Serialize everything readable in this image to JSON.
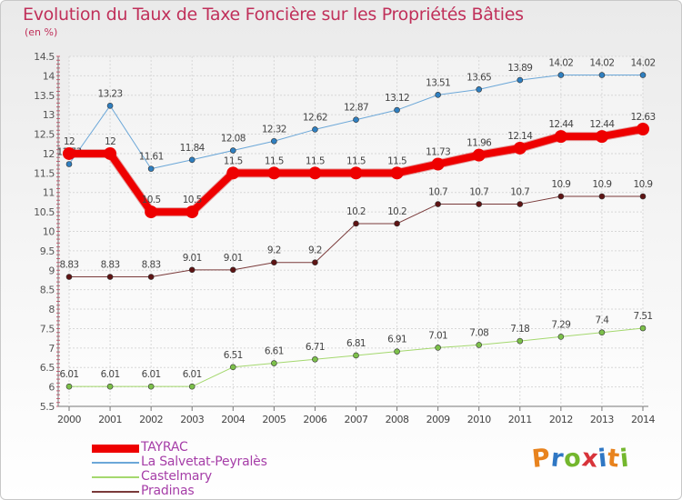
{
  "title": "Evolution du Taux de Taxe Foncière sur les Propriétés Bâties",
  "subtitle": "(en %)",
  "brand": {
    "letters": [
      "P",
      "r",
      "o",
      "x",
      "i",
      "t",
      "i"
    ],
    "colors": [
      "#e8831e",
      "#2f77c4",
      "#74b72e",
      "#d8343a",
      "#2f77c4",
      "#e8831e",
      "#74b72e"
    ]
  },
  "chart_data": {
    "type": "line",
    "title": "Evolution du Taux de Taxe Foncière sur les Propriétés Bâties",
    "ylabel": "(en %)",
    "xlabel": "",
    "ylim": [
      5.5,
      14.5
    ],
    "ytick_step": 0.5,
    "yticks": [
      "5.5",
      "6",
      "6.5",
      "7",
      "7.5",
      "8",
      "8.5",
      "9",
      "9.5",
      "10",
      "10.5",
      "11",
      "11.5",
      "12",
      "12.5",
      "13",
      "13.5",
      "14",
      "14.5"
    ],
    "categories": [
      "2000",
      "2001",
      "2002",
      "2003",
      "2004",
      "2005",
      "2006",
      "2007",
      "2008",
      "2009",
      "2010",
      "2011",
      "2012",
      "2013",
      "2014"
    ],
    "grid": true,
    "legend_position": "bottom-left",
    "series": [
      {
        "name": "La Salvetat-Peyralès",
        "color": "#6ba7d8",
        "marker": "#2f7fc0",
        "width": 1,
        "values": [
          11.73,
          13.23,
          11.61,
          11.84,
          12.08,
          12.32,
          12.62,
          12.87,
          13.12,
          13.51,
          13.65,
          13.89,
          14.02,
          14.02,
          14.02
        ],
        "labels": [
          "11.73",
          "13.23",
          "11.61",
          "11.84",
          "12.08",
          "12.32",
          "12.62",
          "12.87",
          "13.12",
          "13.51",
          "13.65",
          "13.89",
          "14.02",
          "14.02",
          "14.02"
        ]
      },
      {
        "name": "Castelmary",
        "color": "#a4d86e",
        "marker": "#7cc04a",
        "width": 1,
        "values": [
          6.01,
          6.01,
          6.01,
          6.01,
          6.51,
          6.61,
          6.71,
          6.81,
          6.91,
          7.01,
          7.08,
          7.18,
          7.29,
          7.4,
          7.51
        ],
        "labels": [
          "6.01",
          "6.01",
          "6.01",
          "6.01",
          "6.51",
          "6.61",
          "6.71",
          "6.81",
          "6.91",
          "7.01",
          "7.08",
          "7.18",
          "7.29",
          "7.4",
          "7.51"
        ]
      },
      {
        "name": "Pradinas",
        "color": "#7a3a3a",
        "marker": "#5e1414",
        "width": 1,
        "values": [
          8.83,
          8.83,
          8.83,
          9.01,
          9.01,
          9.2,
          9.2,
          10.2,
          10.2,
          10.7,
          10.7,
          10.7,
          10.9,
          10.9,
          10.9
        ],
        "labels": [
          "8.83",
          "8.83",
          "8.83",
          "9.01",
          "9.01",
          "9.2",
          "9.2",
          "10.2",
          "10.2",
          "10.7",
          "10.7",
          "10.7",
          "10.9",
          "10.9",
          "10.9"
        ]
      },
      {
        "name": "TAYRAC",
        "color": "#ee0000",
        "marker": "#ee0000",
        "width": 8,
        "values": [
          12,
          12,
          10.5,
          10.5,
          11.5,
          11.5,
          11.5,
          11.5,
          11.5,
          11.73,
          11.96,
          12.14,
          12.44,
          12.44,
          12.63
        ],
        "labels": [
          "12",
          "12",
          "10.5",
          "10.5",
          "11.5",
          "11.5",
          "11.5",
          "11.5",
          "11.5",
          "11.73",
          "11.96",
          "12.14",
          "12.44",
          "12.44",
          "12.63"
        ]
      }
    ],
    "legend": [
      {
        "name": "TAYRAC",
        "color": "#ee0000"
      },
      {
        "name": "La Salvetat-Peyralès",
        "color": "#6ba7d8"
      },
      {
        "name": "Castelmary",
        "color": "#a4d86e"
      },
      {
        "name": "Pradinas",
        "color": "#7a3a3a"
      }
    ]
  }
}
